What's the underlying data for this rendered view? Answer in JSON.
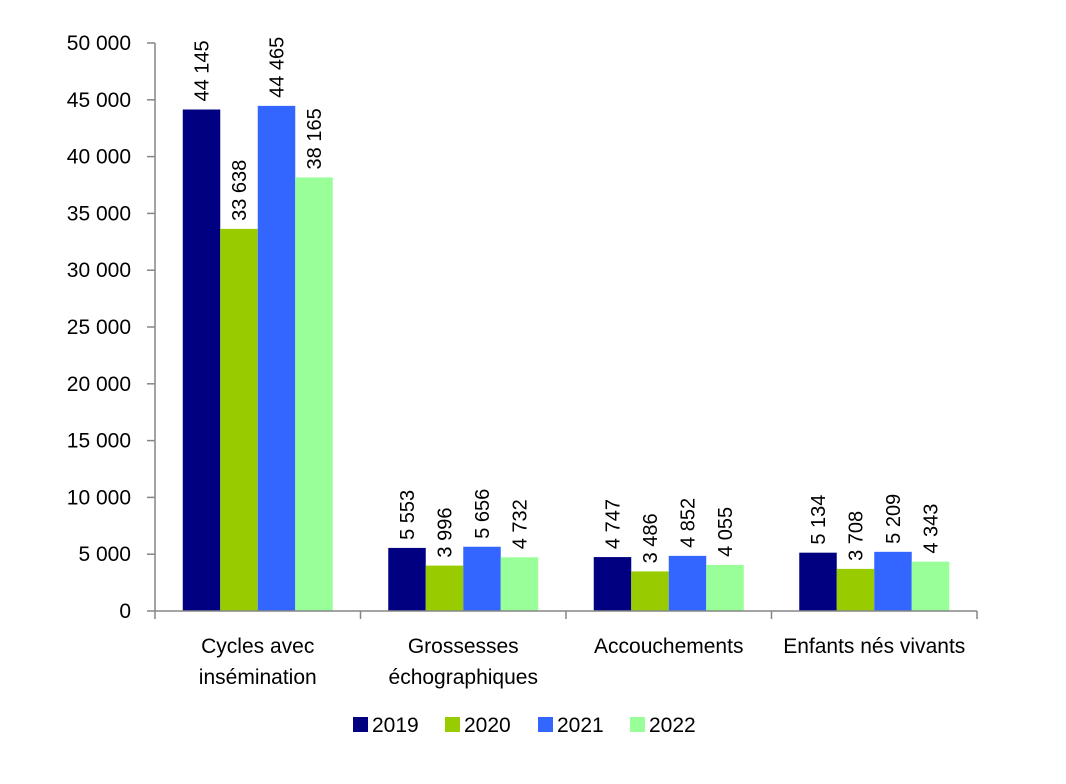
{
  "chart_data": {
    "type": "bar",
    "title": "",
    "xlabel": "",
    "ylabel": "",
    "ylim": [
      0,
      50000
    ],
    "y_ticks": [
      0,
      5000,
      10000,
      15000,
      20000,
      25000,
      30000,
      35000,
      40000,
      45000,
      50000
    ],
    "y_tick_labels": [
      "0",
      "5 000",
      "10 000",
      "15 000",
      "20 000",
      "25 000",
      "30 000",
      "35 000",
      "40 000",
      "45 000",
      "50 000"
    ],
    "categories": [
      [
        "Cycles avec",
        "insémination"
      ],
      [
        "Grossesses",
        "échographiques"
      ],
      [
        "Accouchements"
      ],
      [
        "Enfants nés vivants"
      ]
    ],
    "series": [
      {
        "name": "2019",
        "color": "#000080",
        "values": [
          44145,
          5553,
          4747,
          5134
        ],
        "labels": [
          "44 145",
          "5 553",
          "4 747",
          "5 134"
        ]
      },
      {
        "name": "2020",
        "color": "#99cc00",
        "values": [
          33638,
          3996,
          3486,
          3708
        ],
        "labels": [
          "33 638",
          "3 996",
          "3 486",
          "3 708"
        ]
      },
      {
        "name": "2021",
        "color": "#3366ff",
        "values": [
          44465,
          5656,
          4852,
          5209
        ],
        "labels": [
          "44 465",
          "5 656",
          "4 852",
          "5 209"
        ]
      },
      {
        "name": "2022",
        "color": "#99ff99",
        "values": [
          38165,
          4732,
          4055,
          4343
        ],
        "labels": [
          "38 165",
          "4 732",
          "4 055",
          "4 343"
        ]
      }
    ],
    "grid": false,
    "legend": "bottom"
  }
}
